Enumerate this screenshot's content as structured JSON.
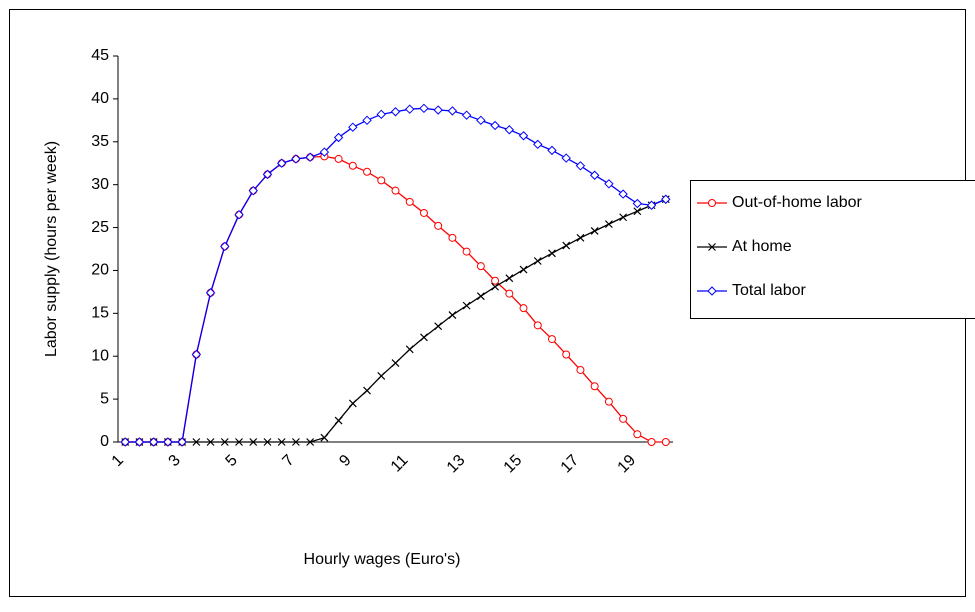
{
  "chart_data": {
    "type": "line",
    "x_label": "Hourly wages (Euro's)",
    "y_label": "Labor supply (hours per week)",
    "categories": [
      1,
      null,
      null,
      null,
      3,
      null,
      null,
      null,
      5,
      null,
      null,
      null,
      7,
      null,
      null,
      null,
      9,
      null,
      null,
      null,
      11,
      null,
      null,
      null,
      13,
      null,
      null,
      null,
      15,
      null,
      null,
      null,
      17,
      null,
      null,
      null,
      19,
      null,
      null
    ],
    "ylim": [
      0,
      45
    ],
    "yticks": [
      0,
      5,
      10,
      15,
      20,
      25,
      30,
      35,
      40,
      45
    ],
    "legend": "right",
    "series": [
      {
        "name": "Out-of-home labor",
        "color": "#ff0000",
        "marker": "circle",
        "values": [
          0,
          0,
          0,
          0,
          0,
          10.2,
          17.4,
          22.8,
          26.5,
          29.3,
          31.2,
          32.5,
          33.0,
          33.2,
          33.3,
          33.0,
          32.2,
          31.5,
          30.5,
          29.3,
          28.0,
          26.7,
          25.2,
          23.8,
          22.2,
          20.5,
          18.8,
          17.3,
          15.6,
          13.6,
          12.0,
          10.2,
          8.4,
          6.5,
          4.7,
          2.7,
          0.9,
          0,
          0
        ]
      },
      {
        "name": "At home",
        "color": "#000000",
        "marker": "x",
        "values": [
          0,
          0,
          0,
          0,
          0,
          0,
          0,
          0,
          0,
          0,
          0,
          0,
          0,
          0,
          0.5,
          2.5,
          4.5,
          6.0,
          7.7,
          9.2,
          10.8,
          12.2,
          13.5,
          14.8,
          15.9,
          17.0,
          18.1,
          19.1,
          20.1,
          21.1,
          22.0,
          22.9,
          23.8,
          24.6,
          25.4,
          26.2,
          26.9,
          27.6,
          28.3
        ]
      },
      {
        "name": "Total labor",
        "color": "#0000ff",
        "marker": "diamond",
        "values": [
          0,
          0,
          0,
          0,
          0,
          10.2,
          17.4,
          22.8,
          26.5,
          29.3,
          31.2,
          32.5,
          33.0,
          33.2,
          33.8,
          35.5,
          36.7,
          37.5,
          38.2,
          38.5,
          38.8,
          38.9,
          38.7,
          38.6,
          38.1,
          37.5,
          36.9,
          36.4,
          35.7,
          34.7,
          34.0,
          33.1,
          32.2,
          31.1,
          30.1,
          28.9,
          27.8,
          27.6,
          28.3
        ]
      }
    ]
  }
}
